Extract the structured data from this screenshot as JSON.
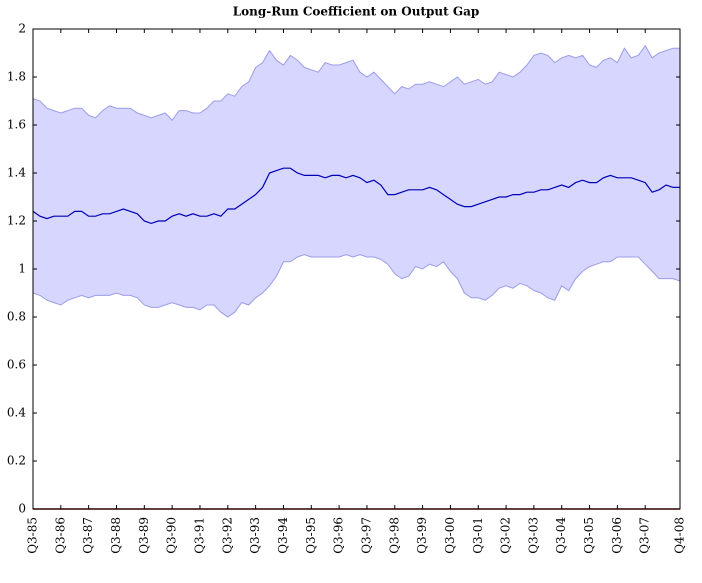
{
  "chart_data": {
    "type": "line",
    "title": "Long-Run Coefficient on Output Gap",
    "categories": [
      "Q3-85",
      null,
      null,
      null,
      "Q3-86",
      null,
      null,
      null,
      "Q3-87",
      null,
      null,
      null,
      "Q3-88",
      null,
      null,
      null,
      "Q3-89",
      null,
      null,
      null,
      "Q3-90",
      null,
      null,
      null,
      "Q3-91",
      null,
      null,
      null,
      "Q3-92",
      null,
      null,
      null,
      "Q3-93",
      null,
      null,
      null,
      "Q3-94",
      null,
      null,
      null,
      "Q3-95",
      null,
      null,
      null,
      "Q3-96",
      null,
      null,
      null,
      "Q3-97",
      null,
      null,
      null,
      "Q3-98",
      null,
      null,
      null,
      "Q3-99",
      null,
      null,
      null,
      "Q3-00",
      null,
      null,
      null,
      "Q3-01",
      null,
      null,
      null,
      "Q3-02",
      null,
      null,
      null,
      "Q3-03",
      null,
      null,
      null,
      "Q3-04",
      null,
      null,
      null,
      "Q3-05",
      null,
      null,
      null,
      "Q3-06",
      null,
      null,
      null,
      "Q3-07",
      null,
      null,
      null,
      null,
      "Q4-08"
    ],
    "values": [
      1.24,
      1.22,
      1.21,
      1.22,
      1.22,
      1.22,
      1.24,
      1.24,
      1.22,
      1.22,
      1.23,
      1.23,
      1.24,
      1.25,
      1.24,
      1.23,
      1.2,
      1.19,
      1.2,
      1.2,
      1.22,
      1.23,
      1.22,
      1.23,
      1.22,
      1.22,
      1.23,
      1.22,
      1.25,
      1.25,
      1.27,
      1.29,
      1.31,
      1.34,
      1.4,
      1.41,
      1.42,
      1.42,
      1.4,
      1.39,
      1.39,
      1.39,
      1.38,
      1.39,
      1.39,
      1.38,
      1.39,
      1.38,
      1.36,
      1.37,
      1.35,
      1.31,
      1.31,
      1.32,
      1.33,
      1.33,
      1.33,
      1.34,
      1.33,
      1.31,
      1.29,
      1.27,
      1.26,
      1.26,
      1.27,
      1.28,
      1.29,
      1.3,
      1.3,
      1.31,
      1.31,
      1.32,
      1.32,
      1.33,
      1.33,
      1.34,
      1.35,
      1.34,
      1.36,
      1.37,
      1.36,
      1.36,
      1.38,
      1.39,
      1.38,
      1.38,
      1.38,
      1.37,
      1.36,
      1.32,
      1.33,
      1.35,
      1.34,
      1.34
    ],
    "color": "#0000b4",
    "band": {
      "color": "#d6d6ff",
      "edge_color": "#9c9ce8",
      "upper": [
        1.71,
        1.7,
        1.67,
        1.66,
        1.65,
        1.66,
        1.67,
        1.67,
        1.64,
        1.63,
        1.66,
        1.68,
        1.67,
        1.67,
        1.67,
        1.65,
        1.64,
        1.63,
        1.64,
        1.65,
        1.62,
        1.66,
        1.66,
        1.65,
        1.65,
        1.67,
        1.7,
        1.7,
        1.73,
        1.72,
        1.76,
        1.78,
        1.84,
        1.86,
        1.91,
        1.87,
        1.85,
        1.89,
        1.87,
        1.84,
        1.83,
        1.82,
        1.86,
        1.85,
        1.85,
        1.86,
        1.87,
        1.82,
        1.8,
        1.82,
        1.79,
        1.76,
        1.73,
        1.76,
        1.75,
        1.77,
        1.77,
        1.78,
        1.77,
        1.76,
        1.78,
        1.8,
        1.77,
        1.78,
        1.79,
        1.77,
        1.78,
        1.82,
        1.81,
        1.8,
        1.82,
        1.85,
        1.89,
        1.9,
        1.89,
        1.86,
        1.88,
        1.89,
        1.88,
        1.89,
        1.85,
        1.84,
        1.87,
        1.88,
        1.86,
        1.92,
        1.88,
        1.89,
        1.93,
        1.88,
        1.9,
        1.91,
        1.92,
        1.92
      ],
      "lower": [
        0.9,
        0.89,
        0.87,
        0.86,
        0.85,
        0.87,
        0.88,
        0.89,
        0.88,
        0.89,
        0.89,
        0.89,
        0.9,
        0.89,
        0.89,
        0.88,
        0.85,
        0.84,
        0.84,
        0.85,
        0.86,
        0.85,
        0.84,
        0.84,
        0.83,
        0.85,
        0.85,
        0.82,
        0.8,
        0.82,
        0.86,
        0.85,
        0.88,
        0.9,
        0.93,
        0.97,
        1.03,
        1.03,
        1.05,
        1.06,
        1.05,
        1.05,
        1.05,
        1.05,
        1.05,
        1.06,
        1.05,
        1.06,
        1.05,
        1.05,
        1.04,
        1.02,
        0.98,
        0.96,
        0.97,
        1.01,
        1.0,
        1.02,
        1.01,
        1.03,
        0.99,
        0.96,
        0.9,
        0.88,
        0.88,
        0.87,
        0.89,
        0.92,
        0.93,
        0.92,
        0.94,
        0.93,
        0.91,
        0.9,
        0.88,
        0.87,
        0.93,
        0.91,
        0.96,
        0.99,
        1.01,
        1.02,
        1.03,
        1.03,
        1.05,
        1.05,
        1.05,
        1.05,
        1.02,
        0.99,
        0.96,
        0.96,
        0.96,
        0.95
      ]
    },
    "zero_line_color": "#8b0000",
    "ylim": [
      0,
      2
    ],
    "yticks": [
      0,
      0.2,
      0.4,
      0.6,
      0.8,
      1,
      1.2,
      1.4,
      1.6,
      1.8,
      2
    ],
    "grid": false
  }
}
